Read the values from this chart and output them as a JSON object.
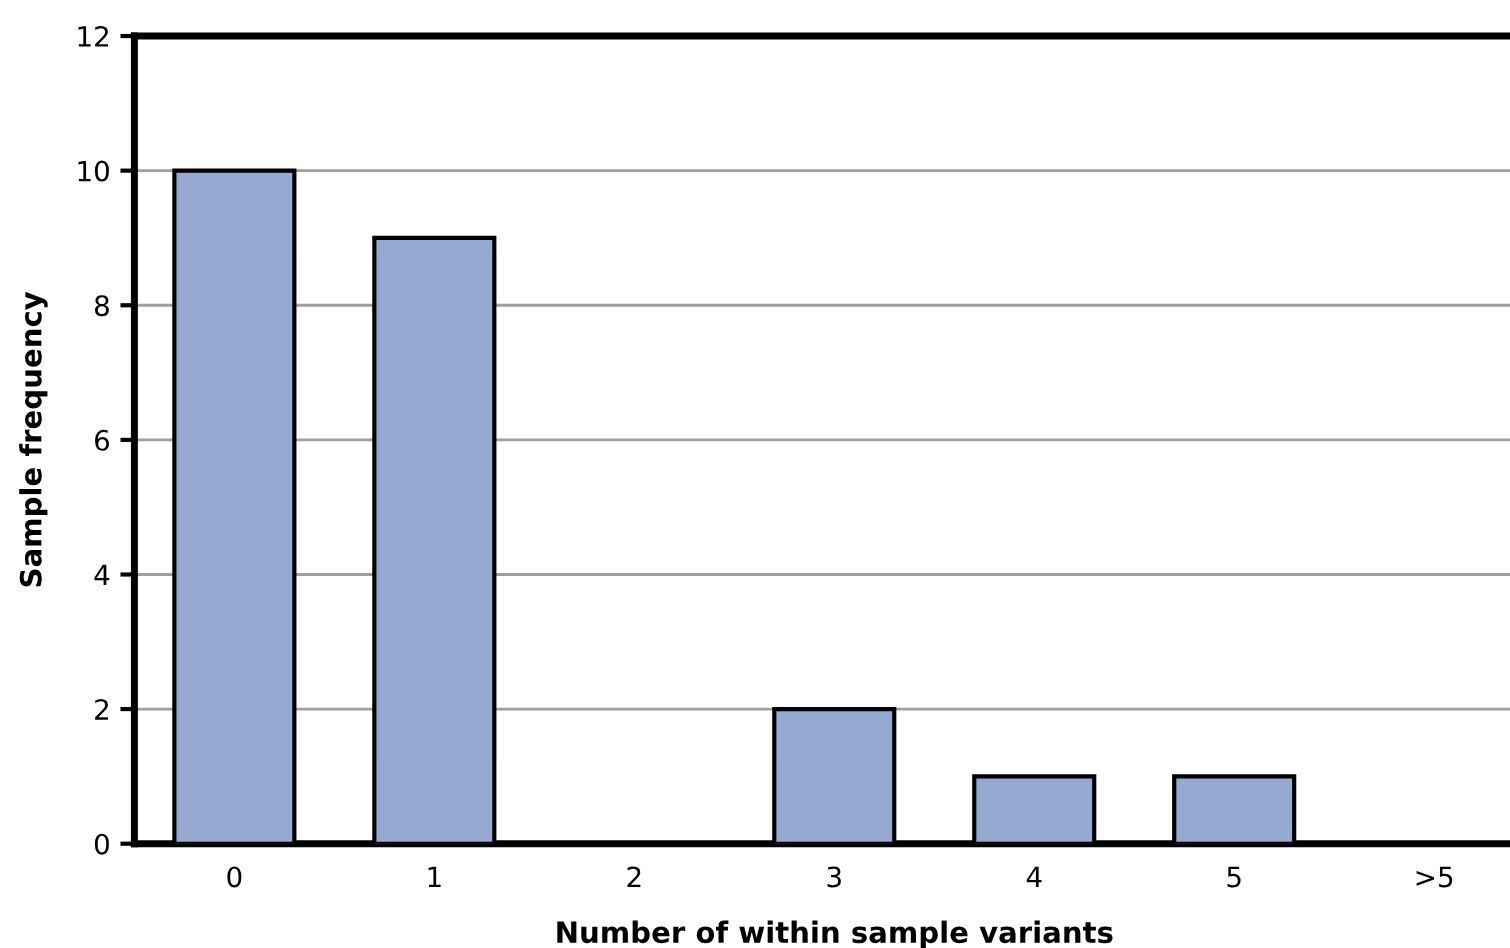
{
  "chart_data": {
    "type": "bar",
    "xlabel": "Number of within sample variants",
    "ylabel": "Sample frequency",
    "categories": [
      "0",
      "1",
      "2",
      "3",
      "4",
      "5",
      ">5"
    ],
    "values": [
      10,
      9,
      0,
      2,
      1,
      1,
      0
    ],
    "color": "#95a9d1",
    "ylim": [
      0,
      12
    ],
    "yticks": [
      0,
      2,
      4,
      6,
      8,
      10,
      12
    ],
    "grid": "y"
  }
}
